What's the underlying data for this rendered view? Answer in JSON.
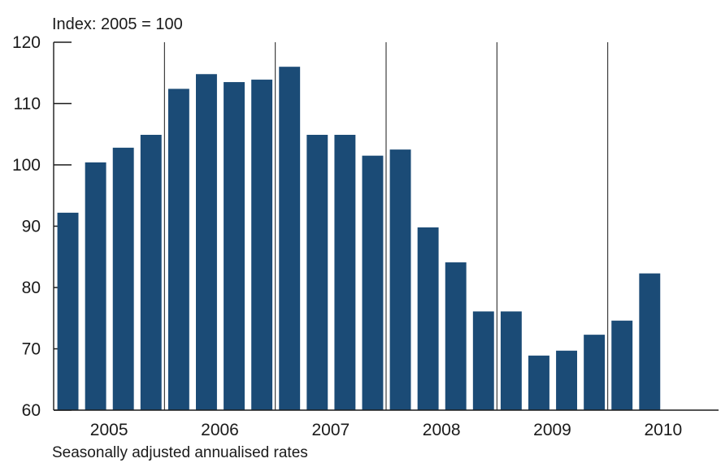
{
  "chart_data": {
    "type": "bar",
    "unit_label": "Index: 2005 = 100",
    "footnote": "Seasonally adjusted annualised rates",
    "ylim": [
      60,
      120
    ],
    "yticks": [
      60,
      70,
      80,
      90,
      100,
      110,
      120
    ],
    "year_labels": [
      "2005",
      "2006",
      "2007",
      "2008",
      "2009",
      "2010"
    ],
    "quarters_per_year": 4,
    "total_quarters": 24,
    "values": [
      92.2,
      100.4,
      102.8,
      104.9,
      112.4,
      114.8,
      113.5,
      113.9,
      116.0,
      104.9,
      104.9,
      101.5,
      102.5,
      89.8,
      84.1,
      76.1,
      76.1,
      68.9,
      69.7,
      72.3,
      74.6,
      82.3
    ],
    "bar_color": "#1b4b76",
    "year_divider_color": "#1a1a1a",
    "grid": false
  }
}
